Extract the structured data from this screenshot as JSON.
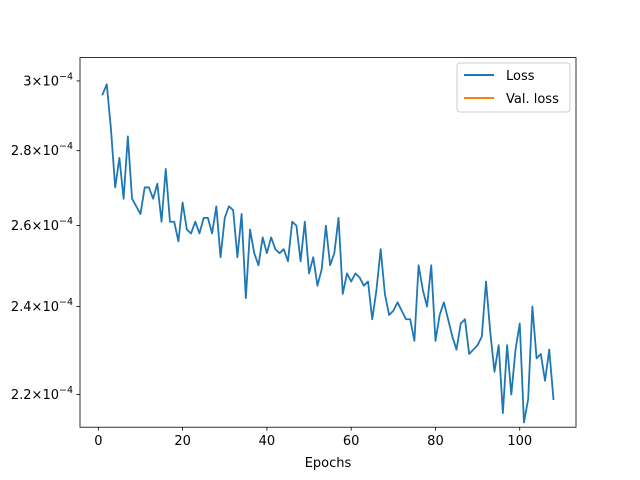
{
  "chart_data": {
    "type": "line",
    "title": "",
    "xlabel": "Epochs",
    "ylabel": "",
    "yscale": "log",
    "xlim": [
      -4.35,
      113.35
    ],
    "ylim": [
      0.000213,
      0.000307
    ],
    "grid": false,
    "legend_position": "top-right",
    "x_ticks": [
      0,
      20,
      40,
      60,
      80,
      100
    ],
    "x_tick_labels": [
      "0",
      "20",
      "40",
      "60",
      "80",
      "100"
    ],
    "y_ticks": [
      0.00022,
      0.00024,
      0.00026,
      0.00028,
      0.0003
    ],
    "y_tick_mantissas": [
      "2.2",
      "2.4",
      "2.6",
      "2.8",
      "3"
    ],
    "y_tick_mid": "×10",
    "y_tick_exponent": "−4",
    "series": [
      {
        "name": "Loss",
        "color": "#1f77b4",
        "x": [
          1,
          2,
          3,
          4,
          5,
          6,
          7,
          8,
          9,
          10,
          11,
          12,
          13,
          14,
          15,
          16,
          17,
          18,
          19,
          20,
          21,
          22,
          23,
          24,
          25,
          26,
          27,
          28,
          29,
          30,
          31,
          32,
          33,
          34,
          35,
          36,
          37,
          38,
          39,
          40,
          41,
          42,
          43,
          44,
          45,
          46,
          47,
          48,
          49,
          50,
          51,
          52,
          53,
          54,
          55,
          56,
          57,
          58,
          59,
          60,
          61,
          62,
          63,
          64,
          65,
          66,
          67,
          68,
          69,
          70,
          71,
          72,
          73,
          74,
          75,
          76,
          77,
          78,
          79,
          80,
          81,
          82,
          83,
          84,
          85,
          86,
          87,
          88,
          89,
          90,
          91,
          92,
          93,
          94,
          95,
          96,
          97,
          98,
          99,
          100,
          101,
          102,
          103,
          104,
          105,
          106,
          107,
          108
        ],
        "y": [
          0.000296,
          0.000299,
          0.000286,
          0.00027,
          0.000278,
          0.000267,
          0.000284,
          0.000267,
          0.000265,
          0.000263,
          0.00027,
          0.00027,
          0.000267,
          0.000271,
          0.000261,
          0.000275,
          0.000261,
          0.000261,
          0.000256,
          0.000266,
          0.000259,
          0.000258,
          0.000261,
          0.000258,
          0.000262,
          0.000262,
          0.000258,
          0.000265,
          0.000252,
          0.000262,
          0.000265,
          0.000264,
          0.000252,
          0.000263,
          0.000242,
          0.000259,
          0.000253,
          0.00025,
          0.000257,
          0.000253,
          0.000257,
          0.000254,
          0.000253,
          0.000254,
          0.000251,
          0.000261,
          0.00026,
          0.000251,
          0.000261,
          0.000248,
          0.000252,
          0.000245,
          0.000249,
          0.00026,
          0.00025,
          0.000253,
          0.000262,
          0.000243,
          0.000248,
          0.000246,
          0.000248,
          0.000247,
          0.000245,
          0.000246,
          0.000237,
          0.000244,
          0.000254,
          0.000243,
          0.000238,
          0.000239,
          0.000241,
          0.000239,
          0.000237,
          0.000237,
          0.000232,
          0.00025,
          0.000244,
          0.00024,
          0.00025,
          0.000232,
          0.000238,
          0.000241,
          0.000237,
          0.000233,
          0.00023,
          0.000236,
          0.000237,
          0.000229,
          0.00023,
          0.000231,
          0.000233,
          0.000246,
          0.000234,
          0.000225,
          0.000231,
          0.000216,
          0.000231,
          0.00022,
          0.00023,
          0.000236,
          0.000214,
          0.000219,
          0.00024,
          0.000228,
          0.000229,
          0.000223,
          0.00023,
          0.000219
        ]
      },
      {
        "name": "Val. loss",
        "color": "#ff7f0e",
        "x": [],
        "y": []
      }
    ]
  }
}
